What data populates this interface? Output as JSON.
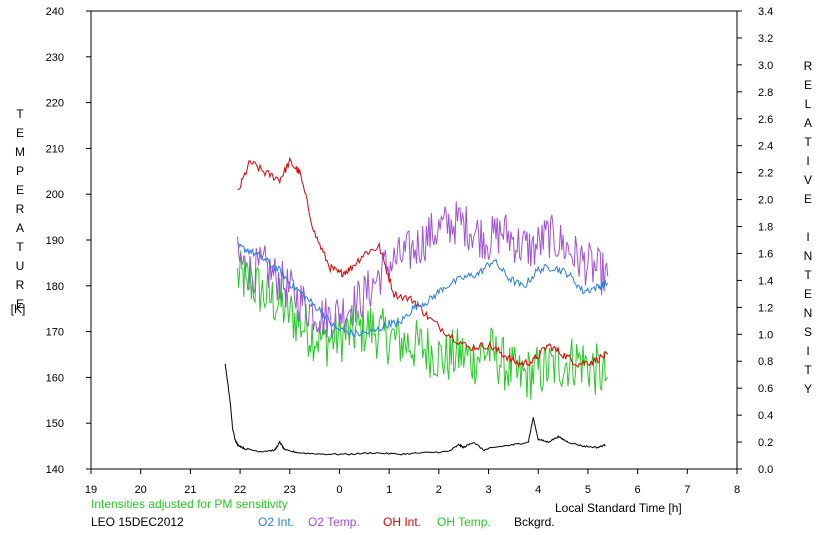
{
  "chart_data": {
    "type": "line",
    "xlabel": "Local Standard Time [h]",
    "x_tick_labels": [
      "19",
      "20",
      "21",
      "22",
      "23",
      "0",
      "1",
      "2",
      "3",
      "4",
      "5",
      "6",
      "7",
      "8"
    ],
    "left_axis": {
      "label": "TEMPERATURE",
      "unit": "[K]",
      "ylim": [
        140,
        240
      ],
      "ticks": [
        140,
        150,
        160,
        170,
        180,
        190,
        200,
        210,
        220,
        230,
        240
      ]
    },
    "right_axis": {
      "label": "RELATIVE INTENSITY",
      "ylim": [
        0.0,
        3.4
      ],
      "ticks": [
        "0.0",
        "0.2",
        "0.4",
        "0.6",
        "0.8",
        "1.0",
        "1.2",
        "1.4",
        "1.6",
        "1.8",
        "2.0",
        "2.2",
        "2.4",
        "2.6",
        "2.8",
        "3.0",
        "3.2",
        "3.4"
      ]
    },
    "note": "Intensities adjusted for PM sensitivity",
    "station_label": "LEO 15DEC2012",
    "colors": {
      "o2_int": "#2a7fe0",
      "o2_temp": "#a050d8",
      "oh_int": "#e00000",
      "oh_temp": "#22cc22",
      "bckgrd": "#000000",
      "note": "#22cc22"
    },
    "series": [
      {
        "name": "O2 Int.",
        "key": "o2_int",
        "axis": "right",
        "noise": 0.03,
        "x": [
          21.95,
          22.2,
          22.5,
          22.8,
          23.0,
          23.3,
          23.6,
          23.9,
          24.3,
          24.7,
          25.0,
          25.2,
          25.5,
          25.8,
          26.1,
          26.5,
          26.8,
          27.1,
          27.4,
          27.7,
          28.0,
          28.3,
          28.6,
          28.9,
          29.2,
          29.4
        ],
        "values": [
          1.65,
          1.62,
          1.55,
          1.47,
          1.38,
          1.28,
          1.18,
          1.05,
          1.0,
          1.02,
          1.08,
          1.08,
          1.2,
          1.25,
          1.35,
          1.42,
          1.45,
          1.55,
          1.42,
          1.35,
          1.48,
          1.5,
          1.45,
          1.32,
          1.35,
          1.38
        ]
      },
      {
        "name": "O2 Temp.",
        "key": "o2_temp",
        "axis": "left",
        "noise": 5,
        "x": [
          21.95,
          22.2,
          22.5,
          22.8,
          23.1,
          23.4,
          23.7,
          24.0,
          24.3,
          24.6,
          24.9,
          25.2,
          25.5,
          25.8,
          26.1,
          26.4,
          26.7,
          27.0,
          27.3,
          27.6,
          27.9,
          28.2,
          28.5,
          28.8,
          29.1,
          29.4
        ],
        "values": [
          186,
          183,
          184,
          181,
          178,
          175,
          173,
          174,
          176,
          179,
          184,
          186,
          188,
          191,
          193,
          194,
          192,
          190,
          192,
          189,
          188,
          191,
          189,
          186,
          184,
          182
        ]
      },
      {
        "name": "OH Int.",
        "key": "oh_int",
        "axis": "right",
        "noise": 0.03,
        "x": [
          21.95,
          22.2,
          22.5,
          22.8,
          23.0,
          23.2,
          23.5,
          23.8,
          24.0,
          24.2,
          24.5,
          24.8,
          25.1,
          25.5,
          25.8,
          26.2,
          26.6,
          27.0,
          27.3,
          27.6,
          27.9,
          28.2,
          28.5,
          28.8,
          29.1,
          29.4
        ],
        "values": [
          2.05,
          2.28,
          2.2,
          2.15,
          2.28,
          2.2,
          1.75,
          1.5,
          1.45,
          1.48,
          1.6,
          1.65,
          1.3,
          1.25,
          1.12,
          1.0,
          0.9,
          0.92,
          0.85,
          0.78,
          0.8,
          0.92,
          0.85,
          0.78,
          0.8,
          0.85
        ]
      },
      {
        "name": "OH Temp.",
        "key": "oh_temp",
        "axis": "left",
        "noise": 6,
        "x": [
          21.95,
          22.2,
          22.5,
          22.8,
          23.1,
          23.4,
          23.7,
          24.0,
          24.3,
          24.6,
          24.9,
          25.2,
          25.5,
          25.8,
          26.1,
          26.4,
          26.7,
          27.0,
          27.3,
          27.6,
          27.9,
          28.2,
          28.5,
          28.8,
          29.1,
          29.4
        ],
        "values": [
          182,
          181,
          178,
          176,
          173,
          170,
          168,
          169,
          170,
          171,
          169,
          168,
          167,
          166,
          164,
          165,
          164,
          166,
          163,
          160,
          161,
          162,
          163,
          164,
          162,
          160
        ]
      },
      {
        "name": "Bckgrd.",
        "key": "bckgrd",
        "axis": "right",
        "noise": 0.006,
        "x": [
          21.7,
          21.8,
          21.85,
          21.9,
          21.95,
          22.1,
          22.4,
          22.7,
          22.8,
          22.9,
          23.2,
          23.7,
          24.2,
          24.7,
          25.2,
          25.7,
          26.2,
          26.4,
          26.5,
          26.7,
          26.9,
          27.1,
          27.5,
          27.8,
          27.9,
          28.0,
          28.2,
          28.4,
          28.6,
          28.9,
          29.2,
          29.35
        ],
        "values": [
          0.78,
          0.5,
          0.3,
          0.22,
          0.18,
          0.15,
          0.13,
          0.14,
          0.2,
          0.14,
          0.12,
          0.11,
          0.11,
          0.12,
          0.11,
          0.12,
          0.13,
          0.18,
          0.16,
          0.2,
          0.14,
          0.16,
          0.18,
          0.2,
          0.38,
          0.22,
          0.2,
          0.24,
          0.2,
          0.17,
          0.16,
          0.18
        ]
      }
    ]
  }
}
